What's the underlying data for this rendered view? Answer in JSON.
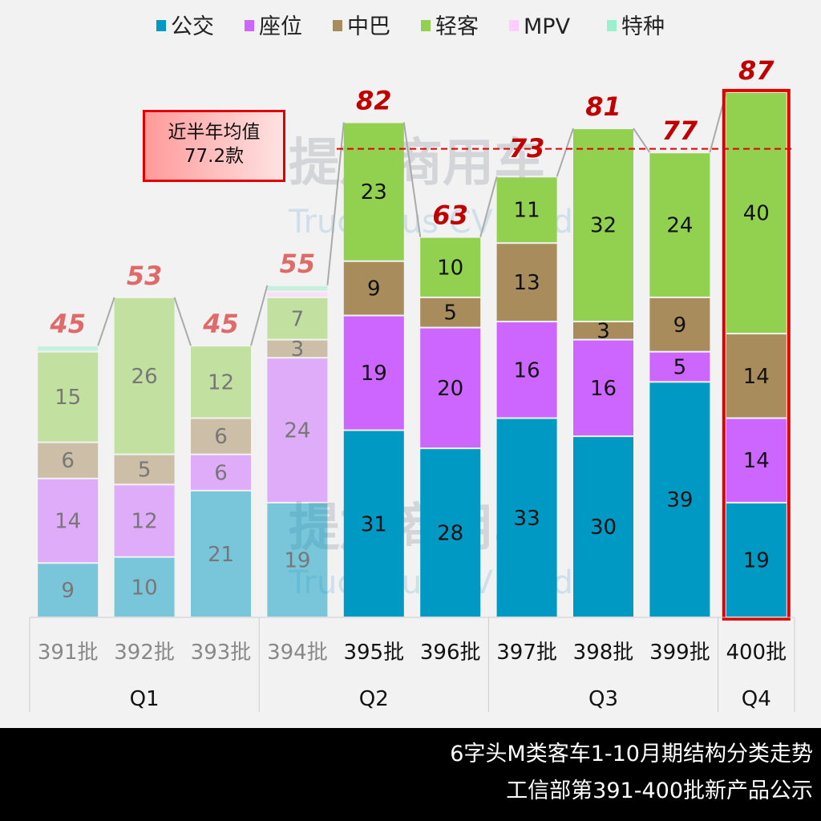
{
  "chart_data": {
    "type": "bar",
    "stacked": true,
    "categories": [
      "391批",
      "392批",
      "393批",
      "394批",
      "395批",
      "396批",
      "397批",
      "398批",
      "399批",
      "400批"
    ],
    "groups": [
      {
        "label": "Q1",
        "categories": [
          "391批",
          "392批",
          "393批"
        ]
      },
      {
        "label": "Q2",
        "categories": [
          "394批",
          "395批",
          "396批"
        ]
      },
      {
        "label": "Q3",
        "categories": [
          "397批",
          "398批",
          "399批"
        ]
      },
      {
        "label": "Q4",
        "categories": [
          "400批"
        ]
      }
    ],
    "series": [
      {
        "name": "公交",
        "color": "#0099c4",
        "values": [
          9,
          10,
          21,
          19,
          31,
          28,
          33,
          30,
          39,
          19
        ]
      },
      {
        "name": "座位",
        "color": "#cc66ff",
        "values": [
          14,
          12,
          6,
          24,
          19,
          20,
          16,
          16,
          5,
          14
        ]
      },
      {
        "name": "中巴",
        "color": "#a88c5c",
        "values": [
          6,
          5,
          6,
          3,
          9,
          5,
          13,
          3,
          9,
          14
        ]
      },
      {
        "name": "轻客",
        "color": "#92d050",
        "values": [
          15,
          26,
          12,
          7,
          23,
          10,
          11,
          32,
          24,
          40
        ]
      },
      {
        "name": "MPV",
        "color": "#ffccff",
        "values": [
          0,
          0,
          0,
          1,
          0,
          0,
          0,
          0,
          0,
          0
        ]
      },
      {
        "name": "特种",
        "color": "#99f0cc",
        "values": [
          1,
          0,
          0,
          1,
          0,
          0,
          0,
          0,
          0,
          0
        ]
      }
    ],
    "totals": [
      45,
      53,
      45,
      55,
      82,
      63,
      73,
      81,
      77,
      87
    ],
    "faded_categories": [
      "391批",
      "392批",
      "393批",
      "394批"
    ],
    "highlighted_category": "400批",
    "average_line": {
      "value": 77.2,
      "label_line1": "近半年均值",
      "label_line2": "77.2款",
      "color": "#e00000"
    },
    "legend_placement": "top",
    "ylim": [
      0,
      87
    ],
    "grid": false
  },
  "footer": {
    "line1": "6字头M类客车1-10月期结构分类走势",
    "line2": "工信部第391-400批新产品公示"
  },
  "watermark": {
    "cn": "提加商用车",
    "en": "TruckPlus CV studio"
  }
}
